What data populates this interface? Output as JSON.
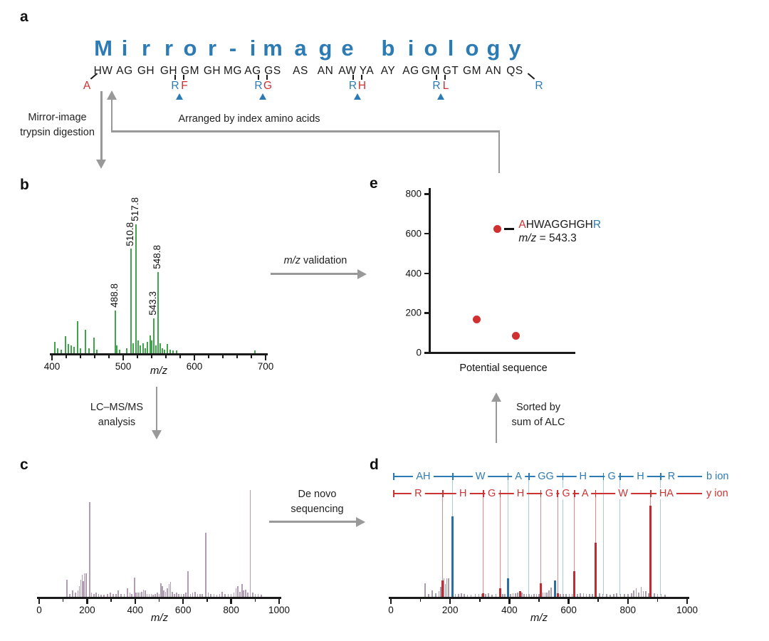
{
  "figure": {
    "panel_labels": {
      "a": "a",
      "b": "b",
      "c": "c",
      "d": "d",
      "e": "e"
    }
  },
  "colors": {
    "blue": "#2d7bb4",
    "red": "#d03030",
    "green": "#3fa44a",
    "purple": "#b19cb3",
    "peak_blue": "#2c6f9e",
    "peak_red": "#c22b31",
    "peak_gray": "#a99cab",
    "guide_blue": "#a9cbe2",
    "guide_red": "#e48a8a",
    "arrow_gray": "#999999",
    "axis": "#1a1a1a"
  },
  "panel_a": {
    "title_text": "Mirror-image biology",
    "letters": [
      "M",
      "i",
      "r",
      "r",
      "o",
      "r",
      "-",
      "i",
      "m",
      "a",
      "g",
      "e",
      "",
      "b",
      "i",
      "o",
      "l",
      "o",
      "g",
      "y"
    ],
    "pairs": [
      "HW",
      "AG",
      "GH",
      "GH",
      "GM",
      "GH",
      "MG",
      "AG",
      "GS",
      "AS",
      "AN",
      "AW",
      "YA",
      "AY",
      "AG",
      "GM",
      "GT",
      "GM",
      "AN",
      "QS"
    ],
    "n_term": "A",
    "c_term": "R",
    "insertions": [
      {
        "blue": "R",
        "red": "F",
        "after": 3
      },
      {
        "blue": "R",
        "red": "G",
        "after": 7
      },
      {
        "blue": "R",
        "red": "H",
        "after": 11
      },
      {
        "blue": "R",
        "red": "L",
        "after": 15
      }
    ],
    "labels": {
      "digestion_line1": "Mirror-image",
      "digestion_line2": "trypsin digestion",
      "arranged": "Arranged by index amino acids"
    }
  },
  "flow": {
    "mz_validation": {
      "italic": "m/z",
      "rest": " validation"
    },
    "lcms_line1": "LC–MS/MS",
    "lcms_line2": "analysis",
    "denovo_line1": "De novo",
    "denovo_line2": "sequencing",
    "sorted_line1": "Sorted by",
    "sorted_line2": "sum of ALC"
  },
  "chart_data": [
    {
      "id": "b",
      "type": "bar",
      "title": "",
      "xlabel": "m/z",
      "ylabel": "",
      "intensity_scale": "percent_of_base_peak",
      "xlim": [
        400,
        700
      ],
      "x_major_ticks": [
        400,
        500,
        600,
        700
      ],
      "x_minor_step": 20,
      "peaks": [
        [
          404,
          9
        ],
        [
          408,
          4
        ],
        [
          413,
          3
        ],
        [
          419,
          13
        ],
        [
          423,
          7
        ],
        [
          427,
          6
        ],
        [
          431,
          5
        ],
        [
          436,
          25
        ],
        [
          440,
          4
        ],
        [
          447,
          18
        ],
        [
          452,
          4
        ],
        [
          459,
          12
        ],
        [
          463,
          3
        ],
        [
          488.8,
          33
        ],
        [
          491,
          6
        ],
        [
          495,
          3
        ],
        [
          505,
          4
        ],
        [
          510.8,
          81
        ],
        [
          513.5,
          8
        ],
        [
          517.8,
          100
        ],
        [
          520.5,
          10
        ],
        [
          524,
          6
        ],
        [
          528,
          8
        ],
        [
          531,
          4
        ],
        [
          534,
          9
        ],
        [
          538,
          14
        ],
        [
          540,
          10
        ],
        [
          543.3,
          27
        ],
        [
          546,
          6
        ],
        [
          548.8,
          63
        ],
        [
          551.5,
          8
        ],
        [
          555,
          4
        ],
        [
          558,
          3
        ],
        [
          561.5,
          7
        ],
        [
          566,
          3
        ],
        [
          570,
          2
        ],
        [
          575,
          2
        ],
        [
          685,
          2
        ]
      ],
      "peak_labels": [
        [
          488.8,
          "488.8"
        ],
        [
          510.8,
          "510.8"
        ],
        [
          517.8,
          "517.8"
        ],
        [
          543.3,
          "543.3"
        ],
        [
          548.8,
          "548.8"
        ]
      ]
    },
    {
      "id": "c",
      "type": "bar",
      "title": "",
      "xlabel": "m/z",
      "ylabel": "",
      "intensity_scale": "percent_of_base_peak",
      "xlim": [
        0,
        1000
      ],
      "x_major_ticks": [
        0,
        200,
        400,
        600,
        800,
        1000
      ],
      "x_minor_step": 100,
      "peaks": [
        [
          115,
          16
        ],
        [
          128,
          3
        ],
        [
          140,
          6
        ],
        [
          152,
          4
        ],
        [
          162,
          6
        ],
        [
          168,
          10
        ],
        [
          173,
          16
        ],
        [
          179,
          21
        ],
        [
          184,
          15
        ],
        [
          189,
          22
        ],
        [
          195,
          22
        ],
        [
          210,
          89
        ],
        [
          218,
          4
        ],
        [
          228,
          3
        ],
        [
          238,
          4
        ],
        [
          248,
          3
        ],
        [
          258,
          2
        ],
        [
          270,
          2
        ],
        [
          285,
          3
        ],
        [
          297,
          4
        ],
        [
          308,
          3
        ],
        [
          320,
          3
        ],
        [
          330,
          6
        ],
        [
          342,
          3
        ],
        [
          355,
          3
        ],
        [
          368,
          8
        ],
        [
          378,
          4
        ],
        [
          385,
          3
        ],
        [
          397,
          18
        ],
        [
          404,
          4
        ],
        [
          412,
          4
        ],
        [
          420,
          4
        ],
        [
          428,
          5
        ],
        [
          435,
          7
        ],
        [
          443,
          6
        ],
        [
          450,
          3
        ],
        [
          458,
          3
        ],
        [
          467,
          3
        ],
        [
          475,
          2
        ],
        [
          483,
          3
        ],
        [
          492,
          4
        ],
        [
          500,
          3
        ],
        [
          507,
          13
        ],
        [
          513,
          10
        ],
        [
          520,
          6
        ],
        [
          527,
          5
        ],
        [
          534,
          8
        ],
        [
          541,
          12
        ],
        [
          547,
          14
        ],
        [
          555,
          5
        ],
        [
          563,
          3
        ],
        [
          572,
          4
        ],
        [
          582,
          3
        ],
        [
          592,
          3
        ],
        [
          602,
          3
        ],
        [
          612,
          4
        ],
        [
          620,
          24
        ],
        [
          630,
          3
        ],
        [
          640,
          4
        ],
        [
          650,
          5
        ],
        [
          660,
          3
        ],
        [
          670,
          3
        ],
        [
          680,
          3
        ],
        [
          695,
          60
        ],
        [
          705,
          4
        ],
        [
          715,
          3
        ],
        [
          728,
          3
        ],
        [
          740,
          2
        ],
        [
          752,
          3
        ],
        [
          762,
          5
        ],
        [
          775,
          3
        ],
        [
          788,
          3
        ],
        [
          800,
          3
        ],
        [
          812,
          4
        ],
        [
          820,
          8
        ],
        [
          828,
          10
        ],
        [
          836,
          5
        ],
        [
          845,
          12
        ],
        [
          852,
          6
        ],
        [
          860,
          7
        ],
        [
          870,
          4
        ],
        [
          880,
          100
        ],
        [
          890,
          4
        ],
        [
          900,
          3
        ],
        [
          912,
          3
        ],
        [
          925,
          2
        ]
      ]
    },
    {
      "id": "d",
      "type": "bar",
      "title": "",
      "xlabel": "m/z",
      "ylabel": "",
      "intensity_scale": "percent_of_base_peak",
      "xlim": [
        0,
        1000
      ],
      "x_major_ticks": [
        0,
        200,
        400,
        600,
        800,
        1000
      ],
      "x_minor_step": 100,
      "gray_peaks": [
        [
          115,
          15
        ],
        [
          128,
          3
        ],
        [
          140,
          7
        ],
        [
          152,
          4
        ],
        [
          162,
          6
        ],
        [
          168,
          11
        ],
        [
          173,
          14
        ],
        [
          179,
          20
        ],
        [
          184,
          14
        ],
        [
          189,
          20
        ],
        [
          195,
          20
        ],
        [
          218,
          3
        ],
        [
          228,
          3
        ],
        [
          238,
          4
        ],
        [
          248,
          3
        ],
        [
          258,
          2
        ],
        [
          270,
          2
        ],
        [
          285,
          3
        ],
        [
          297,
          3
        ],
        [
          308,
          3
        ],
        [
          320,
          3
        ],
        [
          330,
          4
        ],
        [
          342,
          2
        ],
        [
          355,
          3
        ],
        [
          378,
          3
        ],
        [
          385,
          3
        ],
        [
          404,
          3
        ],
        [
          412,
          4
        ],
        [
          420,
          4
        ],
        [
          428,
          5
        ],
        [
          435,
          6
        ],
        [
          443,
          5
        ],
        [
          450,
          3
        ],
        [
          458,
          3
        ],
        [
          467,
          3
        ],
        [
          475,
          2
        ],
        [
          483,
          3
        ],
        [
          492,
          3
        ],
        [
          500,
          3
        ],
        [
          513,
          5
        ],
        [
          520,
          5
        ],
        [
          527,
          5
        ],
        [
          534,
          7
        ],
        [
          541,
          10
        ],
        [
          563,
          3
        ],
        [
          572,
          3
        ],
        [
          582,
          3
        ],
        [
          592,
          3
        ],
        [
          602,
          3
        ],
        [
          612,
          3
        ],
        [
          630,
          3
        ],
        [
          640,
          4
        ],
        [
          650,
          4
        ],
        [
          660,
          3
        ],
        [
          670,
          3
        ],
        [
          680,
          3
        ],
        [
          705,
          4
        ],
        [
          715,
          3
        ],
        [
          728,
          3
        ],
        [
          740,
          2
        ],
        [
          752,
          3
        ],
        [
          762,
          4
        ],
        [
          775,
          3
        ],
        [
          788,
          3
        ],
        [
          800,
          3
        ],
        [
          812,
          4
        ],
        [
          820,
          7
        ],
        [
          828,
          9
        ],
        [
          836,
          5
        ],
        [
          845,
          11
        ],
        [
          852,
          6
        ],
        [
          860,
          6
        ],
        [
          870,
          4
        ],
        [
          890,
          4
        ],
        [
          900,
          3
        ],
        [
          912,
          3
        ],
        [
          925,
          2
        ]
      ],
      "b_peaks": [
        [
          209,
          88
        ],
        [
          395,
          20
        ],
        [
          555,
          18
        ]
      ],
      "y_peaks": [
        [
          175,
          18
        ],
        [
          312,
          4
        ],
        [
          369,
          9
        ],
        [
          437,
          6
        ],
        [
          506,
          15
        ],
        [
          563,
          4
        ],
        [
          620,
          28
        ],
        [
          691,
          59
        ],
        [
          877,
          100
        ]
      ],
      "b_ions": {
        "positions": [
          209,
          395,
          466,
          580,
          717,
          774,
          911
        ],
        "segments": [
          "AH",
          "W",
          "A",
          "GG",
          "H",
          "G",
          "H",
          "R"
        ],
        "legend": "b ion"
      },
      "y_ions": {
        "positions": [
          175,
          312,
          369,
          506,
          563,
          620,
          691,
          877
        ],
        "segments": [
          "R",
          "H",
          "G",
          "H",
          "G",
          "G",
          "A",
          "W",
          "HA"
        ],
        "legend": "y ion"
      }
    },
    {
      "id": "e",
      "type": "scatter",
      "title": "",
      "xlabel": "Potential sequence",
      "ylabel": "",
      "ylim": [
        0,
        800
      ],
      "y_ticks": [
        0,
        200,
        400,
        600,
        800
      ],
      "points": [
        {
          "x_frac": 0.46,
          "y": 620,
          "label": {
            "red": "A",
            "black": "HWAGGHGH",
            "blue": "R"
          },
          "sublabel": {
            "italic": "m/z",
            "rest": " = 543.3"
          }
        },
        {
          "x_frac": 0.32,
          "y": 165
        },
        {
          "x_frac": 0.59,
          "y": 80
        }
      ]
    }
  ]
}
